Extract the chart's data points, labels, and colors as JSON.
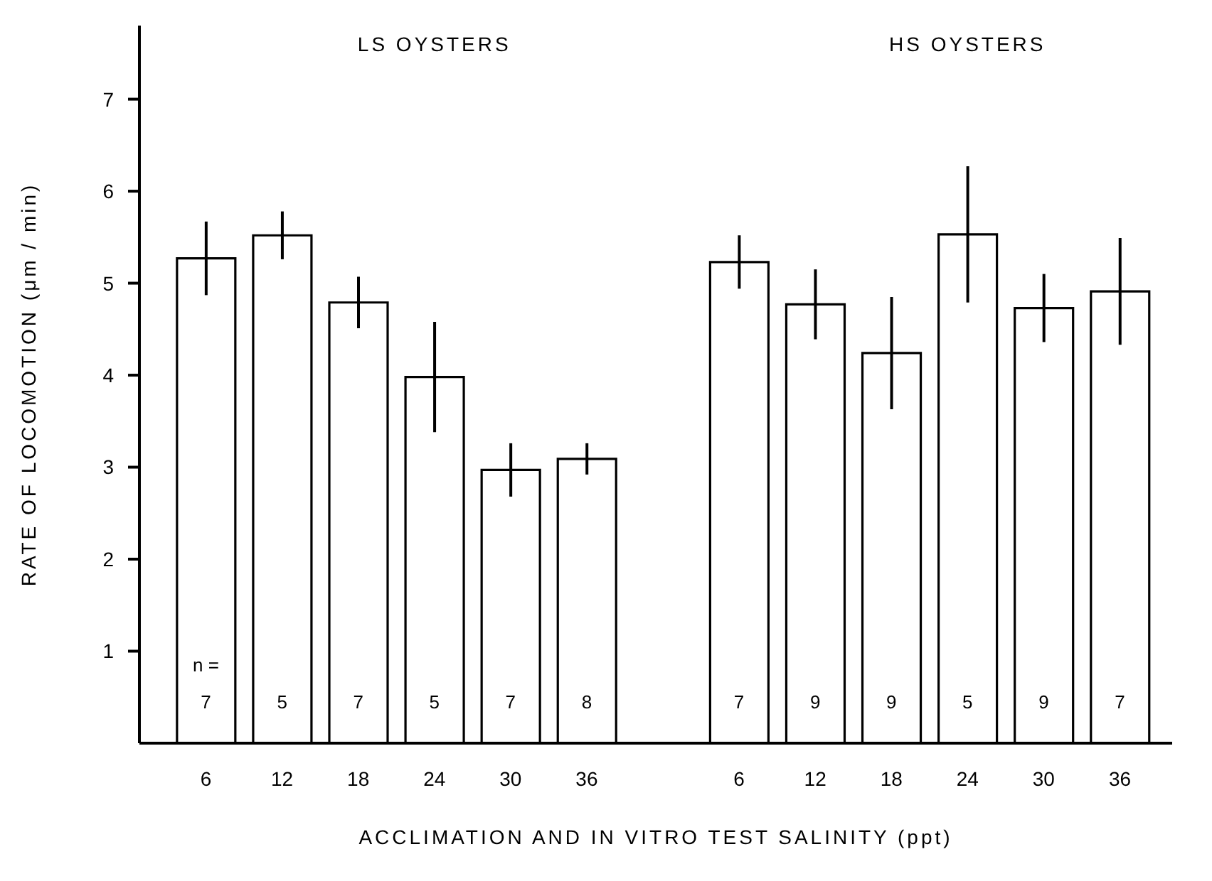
{
  "chart_data": {
    "type": "bar",
    "ylabel": "RATE OF LOCOMOTION (μm / min)",
    "xlabel": "ACCLIMATION AND IN VITRO TEST SALINITY (ppt)",
    "categories": [
      "6",
      "12",
      "18",
      "24",
      "30",
      "36",
      null,
      "6",
      "12",
      "18",
      "24",
      "30",
      "36"
    ],
    "values": [
      5.27,
      5.52,
      4.79,
      3.98,
      2.97,
      3.09,
      null,
      5.23,
      4.77,
      4.24,
      5.53,
      4.73,
      4.91
    ],
    "errors": [
      0.4,
      0.26,
      0.28,
      0.6,
      0.29,
      0.17,
      null,
      0.29,
      0.38,
      0.61,
      0.74,
      0.37,
      0.58
    ],
    "color": "#000000",
    "ylim": [
      0,
      7.8
    ],
    "yticks": [
      1,
      2,
      3,
      4,
      5,
      6,
      7
    ],
    "annotations": [
      "LS OYSTERS",
      "HS OYSTERS",
      "n =",
      "7",
      "5",
      "7",
      "5",
      "7",
      "8",
      "7",
      "9",
      "9",
      "5",
      "9",
      "7"
    ]
  }
}
